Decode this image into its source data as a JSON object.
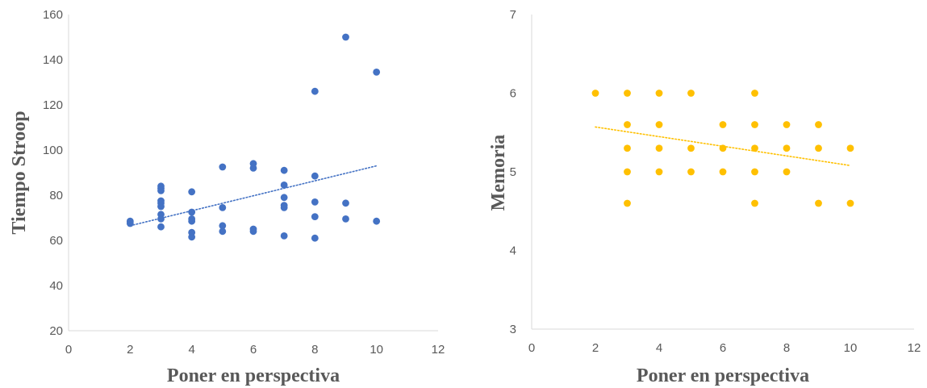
{
  "chart_data": [
    {
      "type": "scatter",
      "title": "",
      "xlabel": "Poner en perspectiva",
      "ylabel": "Tiempo Stroop",
      "xlim": [
        0,
        12
      ],
      "ylim": [
        20,
        160
      ],
      "xticks": [
        0,
        2,
        4,
        6,
        8,
        10,
        12
      ],
      "yticks": [
        20,
        40,
        60,
        80,
        100,
        120,
        140,
        160
      ],
      "grid": false,
      "color": "#4472C4",
      "trendline": {
        "style": "dotted",
        "x": [
          2,
          10
        ],
        "y": [
          66.5,
          93
        ]
      },
      "points": [
        [
          2,
          68.5
        ],
        [
          2,
          67.5
        ],
        [
          3,
          84
        ],
        [
          3,
          83
        ],
        [
          3,
          82
        ],
        [
          3,
          77.5
        ],
        [
          3,
          76.5
        ],
        [
          3,
          75
        ],
        [
          3,
          71.5
        ],
        [
          3,
          69.5
        ],
        [
          3,
          66
        ],
        [
          4,
          81.5
        ],
        [
          4,
          72.5
        ],
        [
          4,
          69.5
        ],
        [
          4,
          68.5
        ],
        [
          4,
          63.5
        ],
        [
          4,
          61.5
        ],
        [
          5,
          92.5
        ],
        [
          5,
          74.5
        ],
        [
          5,
          66.5
        ],
        [
          5,
          64
        ],
        [
          6,
          94
        ],
        [
          6,
          92
        ],
        [
          6,
          65
        ],
        [
          6,
          64
        ],
        [
          7,
          91
        ],
        [
          7,
          84.5
        ],
        [
          7,
          79
        ],
        [
          7,
          75.5
        ],
        [
          7,
          74.5
        ],
        [
          7,
          62
        ],
        [
          8,
          126
        ],
        [
          8,
          88.5
        ],
        [
          8,
          77
        ],
        [
          8,
          70.5
        ],
        [
          8,
          61
        ],
        [
          9,
          150
        ],
        [
          9,
          76.5
        ],
        [
          9,
          69.5
        ],
        [
          10,
          134.5
        ],
        [
          10,
          68.5
        ]
      ]
    },
    {
      "type": "scatter",
      "title": "",
      "xlabel": "Poner en perspectiva",
      "ylabel": "Memoria",
      "xlim": [
        0,
        12
      ],
      "ylim": [
        3,
        7
      ],
      "xticks": [
        0,
        2,
        4,
        6,
        8,
        10,
        12
      ],
      "yticks": [
        3,
        4,
        5,
        6,
        7
      ],
      "grid": false,
      "color": "#FFC000",
      "trendline": {
        "style": "dotted",
        "x": [
          2,
          10
        ],
        "y": [
          5.57,
          5.08
        ]
      },
      "points": [
        [
          2,
          6
        ],
        [
          3,
          6
        ],
        [
          3,
          5.6
        ],
        [
          3,
          5.3
        ],
        [
          3,
          5
        ],
        [
          3,
          4.6
        ],
        [
          4,
          6
        ],
        [
          4,
          5.6
        ],
        [
          4,
          5.3
        ],
        [
          4,
          5
        ],
        [
          5,
          6
        ],
        [
          5,
          5.3
        ],
        [
          5,
          5
        ],
        [
          6,
          5.6
        ],
        [
          6,
          5.3
        ],
        [
          6,
          5
        ],
        [
          7,
          6
        ],
        [
          7,
          5.6
        ],
        [
          7,
          5.3
        ],
        [
          7,
          5
        ],
        [
          7,
          4.6
        ],
        [
          8,
          5.6
        ],
        [
          8,
          5.3
        ],
        [
          8,
          5
        ],
        [
          9,
          5.6
        ],
        [
          9,
          5.3
        ],
        [
          9,
          4.6
        ],
        [
          10,
          5.3
        ],
        [
          10,
          4.6
        ]
      ]
    }
  ]
}
